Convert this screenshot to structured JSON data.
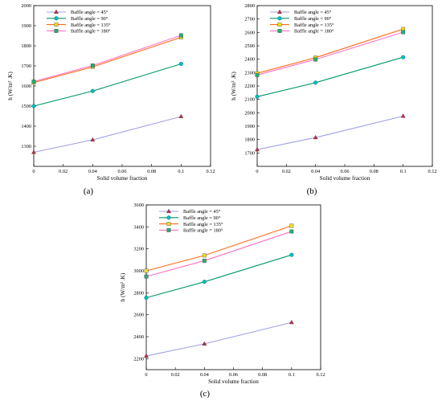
{
  "chart_data": [
    {
      "type": "line",
      "caption": "(a)",
      "xlabel": "Solid volume fraction",
      "ylabel": "h (W/m² .K)",
      "xlim": [
        0,
        0.12
      ],
      "ylim": [
        1200,
        2000
      ],
      "xticks": [
        0,
        0.02,
        0.04,
        0.06,
        0.08,
        0.1,
        0.12
      ],
      "xtick_labels": [
        "0",
        "0.02",
        "0.04",
        "0.06",
        "0.08",
        "0.1",
        "0.12"
      ],
      "yticks": [
        1300,
        1400,
        1500,
        1600,
        1700,
        1800,
        1900,
        2000
      ],
      "legend": "top-left",
      "grid": false,
      "x": [
        0,
        0.04,
        0.1
      ],
      "series": [
        {
          "name": "Baffle angle = 45°",
          "values": [
            1270,
            1332,
            1448
          ],
          "color": "#a0a0e6",
          "marker": "triangle",
          "marker_color": "#b03a48"
        },
        {
          "name": "Baffle angle = 90°",
          "values": [
            1500,
            1575,
            1710
          ],
          "color": "#009966",
          "marker": "circle",
          "marker_color": "#00bfbf"
        },
        {
          "name": "Baffle angle = 135°",
          "values": [
            1617,
            1695,
            1842
          ],
          "color": "#ff6a1a",
          "marker": "square",
          "marker_color": "#f0e020"
        },
        {
          "name": "Baffle angle = 180°",
          "values": [
            1622,
            1702,
            1852
          ],
          "color": "#ff70c0",
          "marker": "square",
          "marker_color": "#20b070"
        }
      ]
    },
    {
      "type": "line",
      "caption": "(b)",
      "xlabel": "Solid volume fraction",
      "ylabel": "h (W/m² .K)",
      "xlim": [
        0,
        0.12
      ],
      "ylim": [
        1600,
        2800
      ],
      "xticks": [
        0,
        0.02,
        0.04,
        0.06,
        0.08,
        0.1,
        0.12
      ],
      "xtick_labels": [
        "0",
        "0.02",
        "0.04",
        "0.06",
        "0.08",
        "0.1",
        "0.12"
      ],
      "yticks": [
        1700,
        1800,
        1900,
        2000,
        2100,
        2200,
        2300,
        2400,
        2500,
        2600,
        2700,
        2800
      ],
      "legend": "top-left",
      "grid": false,
      "x": [
        0,
        0.04,
        0.1
      ],
      "series": [
        {
          "name": "Baffle angle = 45°",
          "values": [
            1725,
            1815,
            1975
          ],
          "color": "#a0a0e6",
          "marker": "triangle",
          "marker_color": "#b03a48"
        },
        {
          "name": "Baffle angle = 90°",
          "values": [
            2120,
            2225,
            2415
          ],
          "color": "#009966",
          "marker": "circle",
          "marker_color": "#00bfbf"
        },
        {
          "name": "Baffle angle = 135°",
          "values": [
            2295,
            2412,
            2625
          ],
          "color": "#ff6a1a",
          "marker": "square",
          "marker_color": "#f0e020"
        },
        {
          "name": "Baffle angle = 180°",
          "values": [
            2282,
            2398,
            2602
          ],
          "color": "#ff70c0",
          "marker": "square",
          "marker_color": "#20b070"
        }
      ]
    },
    {
      "type": "line",
      "caption": "(c)",
      "xlabel": "Solid volume fraction",
      "ylabel": "h (W/m² .K)",
      "xlim": [
        0,
        0.12
      ],
      "ylim": [
        2100,
        3600
      ],
      "xticks": [
        0,
        0.02,
        0.04,
        0.06,
        0.08,
        0.1,
        0.12
      ],
      "xtick_labels": [
        "0",
        "0.02",
        "0.04",
        "0.06",
        "0.08",
        "0.1",
        "0.12"
      ],
      "yticks": [
        2200,
        2400,
        2600,
        2800,
        3000,
        3200,
        3400,
        3600
      ],
      "legend": "top-left",
      "grid": false,
      "x": [
        0,
        0.04,
        0.1
      ],
      "series": [
        {
          "name": "Baffle angle = 45°",
          "values": [
            2225,
            2335,
            2530
          ],
          "color": "#a0a0e6",
          "marker": "triangle",
          "marker_color": "#b03a48"
        },
        {
          "name": "Baffle angle = 90°",
          "values": [
            2755,
            2900,
            3145
          ],
          "color": "#009966",
          "marker": "circle",
          "marker_color": "#00bfbf"
        },
        {
          "name": "Baffle angle = 135°",
          "values": [
            3000,
            3140,
            3410
          ],
          "color": "#ff6a1a",
          "marker": "square",
          "marker_color": "#f0e020"
        },
        {
          "name": "Baffle angle = 180°",
          "values": [
            2948,
            3092,
            3358
          ],
          "color": "#ff70c0",
          "marker": "square",
          "marker_color": "#20b070"
        }
      ]
    }
  ]
}
